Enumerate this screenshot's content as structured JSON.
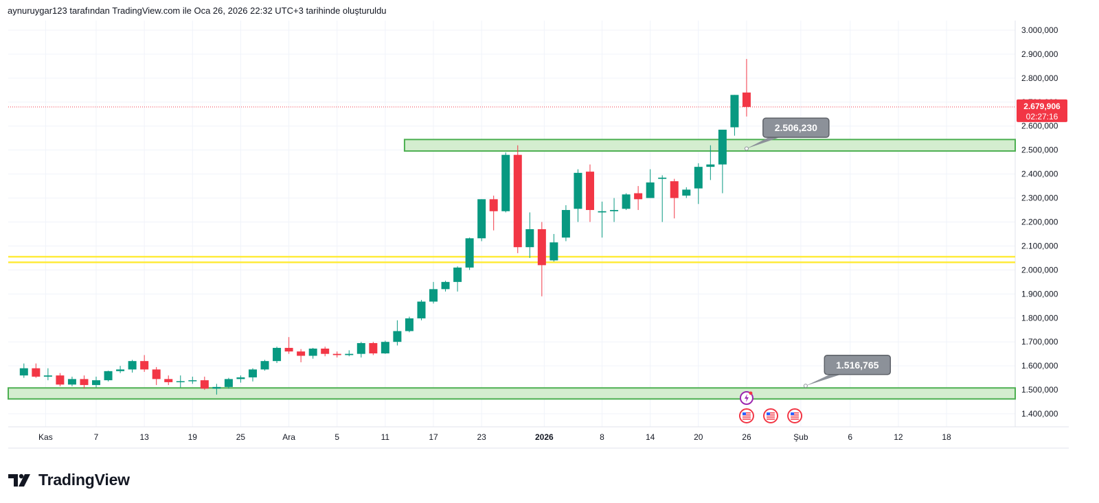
{
  "header": {
    "caption": "aynuruygar123 tarafından TradingView.com ile Oca 26, 2026 22:32 UTC+3 tarihinde oluşturuldu"
  },
  "brand": {
    "name": "TradingView"
  },
  "colors": {
    "up": "#089981",
    "down": "#f23645",
    "zone_fill": "#d4edcf",
    "zone_border": "#4caf50",
    "support_line": "#ffeb3b",
    "callout_bg": "#8c9199",
    "grid": "#f0f3fa",
    "text": "#131722"
  },
  "chart_data": {
    "type": "candlestick",
    "ylim": [
      1340000,
      3040000
    ],
    "y_ticks": [
      {
        "value": 1400000,
        "label": "1.400,000"
      },
      {
        "value": 1500000,
        "label": "1.500,000"
      },
      {
        "value": 1600000,
        "label": "1.600,000"
      },
      {
        "value": 1700000,
        "label": "1.700,000"
      },
      {
        "value": 1800000,
        "label": "1.800,000"
      },
      {
        "value": 1900000,
        "label": "1.900,000"
      },
      {
        "value": 2000000,
        "label": "2.000,000"
      },
      {
        "value": 2100000,
        "label": "2.100,000"
      },
      {
        "value": 2200000,
        "label": "2.200,000"
      },
      {
        "value": 2300000,
        "label": "2.300,000"
      },
      {
        "value": 2400000,
        "label": "2.400,000"
      },
      {
        "value": 2500000,
        "label": "2.500,000"
      },
      {
        "value": 2600000,
        "label": "2.600,000"
      },
      {
        "value": 2700000,
        "label": "2.700,000"
      },
      {
        "value": 2800000,
        "label": "2.800,000"
      },
      {
        "value": 2900000,
        "label": "2.900,000"
      },
      {
        "value": 3000000,
        "label": "3.000,000"
      }
    ],
    "x_range": [
      -1.3,
      82.3
    ],
    "x_ticks": [
      {
        "i": 1.8,
        "label": "Kas",
        "bold": false
      },
      {
        "i": 6,
        "label": "7",
        "bold": false
      },
      {
        "i": 10,
        "label": "13",
        "bold": false
      },
      {
        "i": 14,
        "label": "19",
        "bold": false
      },
      {
        "i": 18,
        "label": "25",
        "bold": false
      },
      {
        "i": 22,
        "label": "Ara",
        "bold": false
      },
      {
        "i": 26,
        "label": "5",
        "bold": false
      },
      {
        "i": 30,
        "label": "11",
        "bold": false
      },
      {
        "i": 34,
        "label": "17",
        "bold": false
      },
      {
        "i": 38,
        "label": "23",
        "bold": false
      },
      {
        "i": 43.2,
        "label": "2026",
        "bold": true
      },
      {
        "i": 48,
        "label": "8",
        "bold": false
      },
      {
        "i": 52,
        "label": "14",
        "bold": false
      },
      {
        "i": 56,
        "label": "20",
        "bold": false
      },
      {
        "i": 60,
        "label": "26",
        "bold": false
      },
      {
        "i": 64.5,
        "label": "Şub",
        "bold": false
      },
      {
        "i": 68.6,
        "label": "6",
        "bold": false
      },
      {
        "i": 72.6,
        "label": "12",
        "bold": false
      },
      {
        "i": 76.6,
        "label": "18",
        "bold": false
      }
    ],
    "candles": [
      {
        "o": 1560000,
        "h": 1610000,
        "l": 1550000,
        "c": 1590000
      },
      {
        "o": 1590000,
        "h": 1610000,
        "l": 1550000,
        "c": 1555000
      },
      {
        "o": 1555000,
        "h": 1590000,
        "l": 1540000,
        "c": 1560000
      },
      {
        "o": 1560000,
        "h": 1570000,
        "l": 1515000,
        "c": 1522000
      },
      {
        "o": 1522000,
        "h": 1555000,
        "l": 1515000,
        "c": 1545000
      },
      {
        "o": 1545000,
        "h": 1560000,
        "l": 1505000,
        "c": 1520000
      },
      {
        "o": 1520000,
        "h": 1555000,
        "l": 1510000,
        "c": 1540000
      },
      {
        "o": 1540000,
        "h": 1580000,
        "l": 1535000,
        "c": 1578000
      },
      {
        "o": 1578000,
        "h": 1600000,
        "l": 1570000,
        "c": 1585000
      },
      {
        "o": 1585000,
        "h": 1625000,
        "l": 1572000,
        "c": 1620000
      },
      {
        "o": 1620000,
        "h": 1645000,
        "l": 1575000,
        "c": 1585000
      },
      {
        "o": 1585000,
        "h": 1595000,
        "l": 1520000,
        "c": 1545000
      },
      {
        "o": 1545000,
        "h": 1560000,
        "l": 1520000,
        "c": 1532000
      },
      {
        "o": 1532000,
        "h": 1560000,
        "l": 1510000,
        "c": 1536000
      },
      {
        "o": 1536000,
        "h": 1555000,
        "l": 1525000,
        "c": 1540000
      },
      {
        "o": 1540000,
        "h": 1555000,
        "l": 1500000,
        "c": 1505000
      },
      {
        "o": 1505000,
        "h": 1525000,
        "l": 1480000,
        "c": 1512000
      },
      {
        "o": 1512000,
        "h": 1550000,
        "l": 1505000,
        "c": 1545000
      },
      {
        "o": 1545000,
        "h": 1560000,
        "l": 1530000,
        "c": 1552000
      },
      {
        "o": 1552000,
        "h": 1590000,
        "l": 1535000,
        "c": 1585000
      },
      {
        "o": 1585000,
        "h": 1625000,
        "l": 1580000,
        "c": 1620000
      },
      {
        "o": 1620000,
        "h": 1680000,
        "l": 1612000,
        "c": 1675000
      },
      {
        "o": 1675000,
        "h": 1720000,
        "l": 1650000,
        "c": 1660000
      },
      {
        "o": 1660000,
        "h": 1670000,
        "l": 1615000,
        "c": 1642000
      },
      {
        "o": 1642000,
        "h": 1675000,
        "l": 1630000,
        "c": 1672000
      },
      {
        "o": 1672000,
        "h": 1680000,
        "l": 1640000,
        "c": 1650000
      },
      {
        "o": 1650000,
        "h": 1660000,
        "l": 1635000,
        "c": 1645000
      },
      {
        "o": 1645000,
        "h": 1665000,
        "l": 1640000,
        "c": 1650000
      },
      {
        "o": 1650000,
        "h": 1700000,
        "l": 1635000,
        "c": 1695000
      },
      {
        "o": 1695000,
        "h": 1700000,
        "l": 1645000,
        "c": 1652000
      },
      {
        "o": 1652000,
        "h": 1705000,
        "l": 1650000,
        "c": 1700000
      },
      {
        "o": 1700000,
        "h": 1790000,
        "l": 1685000,
        "c": 1745000
      },
      {
        "o": 1745000,
        "h": 1805000,
        "l": 1740000,
        "c": 1798000
      },
      {
        "o": 1798000,
        "h": 1875000,
        "l": 1790000,
        "c": 1868000
      },
      {
        "o": 1868000,
        "h": 1950000,
        "l": 1860000,
        "c": 1920000
      },
      {
        "o": 1920000,
        "h": 1955000,
        "l": 1910000,
        "c": 1950000
      },
      {
        "o": 1950000,
        "h": 2015000,
        "l": 1910000,
        "c": 2010000
      },
      {
        "o": 2010000,
        "h": 2135000,
        "l": 2000000,
        "c": 2132000
      },
      {
        "o": 2132000,
        "h": 2295000,
        "l": 2120000,
        "c": 2295000
      },
      {
        "o": 2295000,
        "h": 2310000,
        "l": 2165000,
        "c": 2245000
      },
      {
        "o": 2245000,
        "h": 2490000,
        "l": 2240000,
        "c": 2480000
      },
      {
        "o": 2480000,
        "h": 2520000,
        "l": 2070000,
        "c": 2095000
      },
      {
        "o": 2095000,
        "h": 2240000,
        "l": 2050000,
        "c": 2170000
      },
      {
        "o": 2170000,
        "h": 2200000,
        "l": 1890000,
        "c": 2020000
      },
      {
        "o": 2040000,
        "h": 2150000,
        "l": 2035000,
        "c": 2115000
      },
      {
        "o": 2135000,
        "h": 2270000,
        "l": 2120000,
        "c": 2250000
      },
      {
        "o": 2255000,
        "h": 2420000,
        "l": 2200000,
        "c": 2405000
      },
      {
        "o": 2410000,
        "h": 2440000,
        "l": 2200000,
        "c": 2250000
      },
      {
        "o": 2240000,
        "h": 2285000,
        "l": 2135000,
        "c": 2245000
      },
      {
        "o": 2245000,
        "h": 2300000,
        "l": 2200000,
        "c": 2250000
      },
      {
        "o": 2255000,
        "h": 2320000,
        "l": 2250000,
        "c": 2315000
      },
      {
        "o": 2320000,
        "h": 2350000,
        "l": 2250000,
        "c": 2295000
      },
      {
        "o": 2300000,
        "h": 2420000,
        "l": 2300000,
        "c": 2365000
      },
      {
        "o": 2380000,
        "h": 2395000,
        "l": 2200000,
        "c": 2385000
      },
      {
        "o": 2370000,
        "h": 2380000,
        "l": 2215000,
        "c": 2300000
      },
      {
        "o": 2310000,
        "h": 2345000,
        "l": 2300000,
        "c": 2335000
      },
      {
        "o": 2340000,
        "h": 2445000,
        "l": 2275000,
        "c": 2430000
      },
      {
        "o": 2430000,
        "h": 2520000,
        "l": 2375000,
        "c": 2440000
      },
      {
        "o": 2440000,
        "h": 2585000,
        "l": 2320000,
        "c": 2585000
      },
      {
        "o": 2595000,
        "h": 2730000,
        "l": 2560000,
        "c": 2730000
      },
      {
        "o": 2740000,
        "h": 2880000,
        "l": 2640000,
        "c": 2679906
      }
    ],
    "zones": [
      {
        "i_start": 31.6,
        "i_end": 82.3,
        "y_low": 2496000,
        "y_high": 2544000
      },
      {
        "i_start": -1.3,
        "i_end": 82.3,
        "y_low": 1462000,
        "y_high": 1508000
      }
    ],
    "support_lines": [
      {
        "y": 2055000
      },
      {
        "y": 2032000
      }
    ],
    "callouts": [
      {
        "text": "2.506,230",
        "anchor_i": 60,
        "anchor_y": 2506230,
        "box_i": 64.1,
        "box_y": 2593000
      },
      {
        "text": "1.516,765",
        "anchor_i": 64.9,
        "anchor_y": 1516765,
        "box_i": 69.2,
        "box_y": 1604000
      }
    ],
    "last_price": {
      "value": 2679906,
      "label": "2.679,906",
      "countdown": "02:27:16"
    },
    "events": [
      {
        "i": 60,
        "kind": "flash-icon"
      },
      {
        "i": 60,
        "kind": "us-flag-icon"
      },
      {
        "i": 62,
        "kind": "us-flag-icon"
      },
      {
        "i": 64,
        "kind": "us-flag-icon"
      }
    ]
  }
}
